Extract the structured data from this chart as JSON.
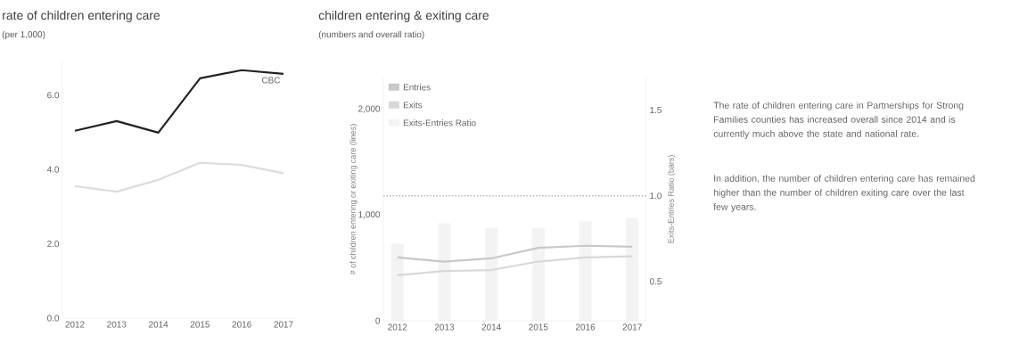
{
  "chart_data": [
    {
      "type": "line",
      "title": "rate of children entering care",
      "subtitle": "(per 1,000)",
      "categories": [
        "2012",
        "2013",
        "2014",
        "2015",
        "2016",
        "2017"
      ],
      "series": [
        {
          "name": "CBC",
          "color": "#222222",
          "values": [
            5.04,
            5.3,
            4.99,
            6.45,
            6.67,
            6.57
          ]
        },
        {
          "color": "#dddddd",
          "values": [
            3.55,
            3.4,
            3.72,
            4.18,
            4.12,
            3.9
          ]
        }
      ],
      "ylim": [
        0,
        7
      ],
      "yticks": [
        {
          "value": 0,
          "label": "0.0"
        },
        {
          "value": 2,
          "label": "2.0"
        },
        {
          "value": 4,
          "label": "4.0"
        },
        {
          "value": 6,
          "label": "6.0"
        }
      ],
      "legend": false
    },
    {
      "type": "line",
      "title": "children entering & exiting care",
      "subtitle": "(numbers and overall ratio)",
      "categories": [
        "2012",
        "2013",
        "2014",
        "2015",
        "2016",
        "2017"
      ],
      "ylabel": "# of children entering or exiting care (lines)",
      "y2label": "Exits-Entries Ratio (bars)",
      "series": [
        {
          "name": "Entries",
          "color": "#c8c8c8",
          "values": [
            600,
            560,
            590,
            690,
            710,
            700
          ]
        },
        {
          "name": "Exits",
          "color": "#d8d8d8",
          "values": [
            430,
            470,
            480,
            560,
            600,
            610
          ]
        },
        {
          "name": "Exits-Entries Ratio",
          "type": "bar",
          "axis": "y2",
          "color": "#f3f3f3",
          "values": [
            0.72,
            0.84,
            0.81,
            0.81,
            0.85,
            0.87
          ]
        }
      ],
      "ylim": [
        0,
        2300
      ],
      "yticks": [
        {
          "value": 0,
          "label": "0"
        },
        {
          "value": 1000,
          "label": "1,000"
        },
        {
          "value": 2000,
          "label": "2,000"
        }
      ],
      "y2lim": [
        0.27,
        1.69
      ],
      "y2ticks": [
        0.5,
        {
          "value": 1,
          "label": "1.0"
        },
        1.5
      ],
      "ref_lines": [
        {
          "axis": "y2",
          "value": 1,
          "color": "#b8b8b8",
          "line_style": "dotted"
        }
      ],
      "legend": "top left"
    },
    {
      "type": "other",
      "annotations": [
        "The rate of children entering care in Partnerships for Strong Families counties has increased overall since 2014 and is currently much above the state and national rate.",
        "In addition, the number of children entering care has remained higher than the number of children exiting care over the last few years."
      ]
    }
  ]
}
